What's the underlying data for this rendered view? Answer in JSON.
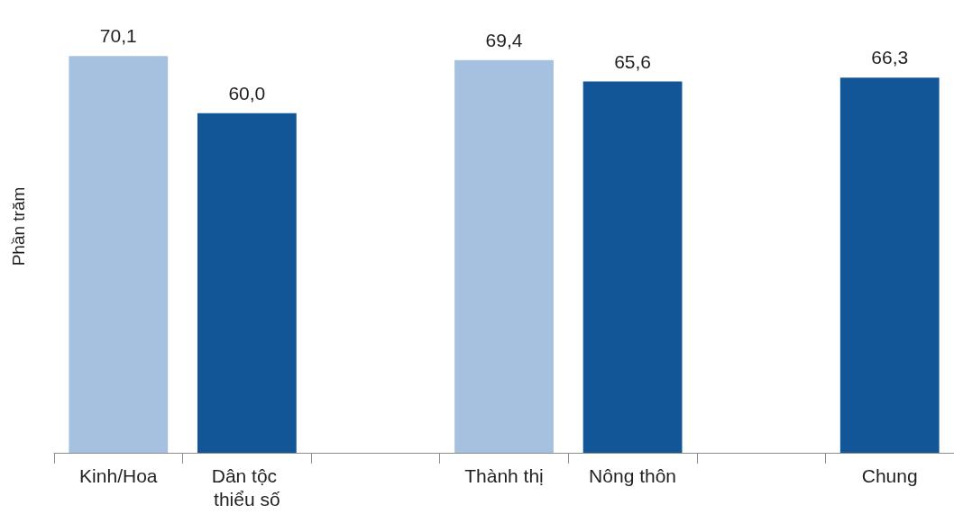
{
  "chart_data": {
    "type": "bar",
    "ylabel": "Phần trăm",
    "categories": [
      "Kinh/Hoa",
      "Dân tộc thiểu số",
      null,
      "Thành thị",
      "Nông thôn",
      null,
      "Chung"
    ],
    "values": [
      70.1,
      60.0,
      null,
      69.4,
      65.6,
      null,
      66.3
    ],
    "value_labels": [
      "70,1",
      "60,0",
      null,
      "69,4",
      "65,6",
      null,
      "66,3"
    ],
    "colors": [
      "#a5c1df",
      "#135697",
      null,
      "#a5c1df",
      "#135697",
      null,
      "#135697"
    ],
    "tick_labels": "x"
  }
}
